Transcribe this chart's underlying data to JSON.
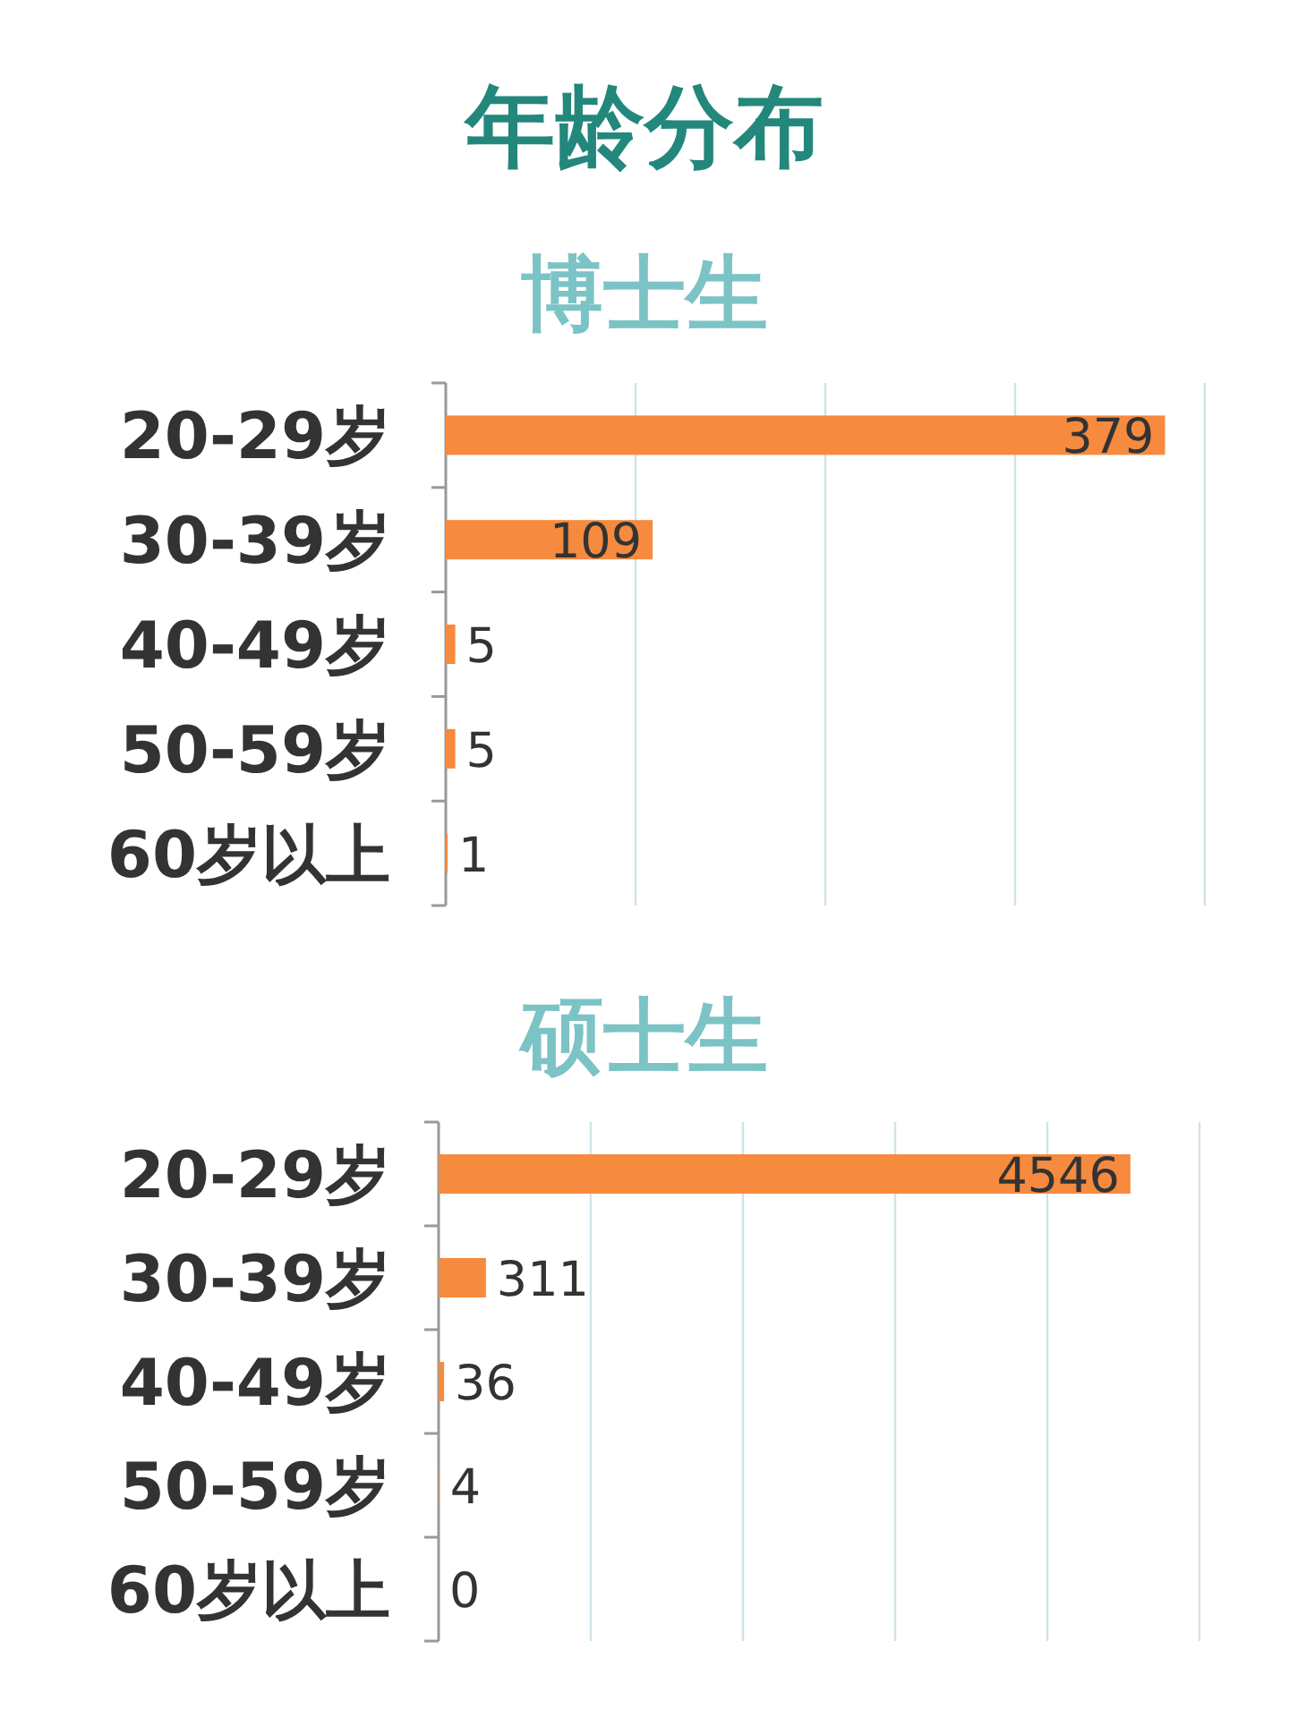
{
  "chart_data": [
    {
      "type": "bar",
      "orientation": "horizontal",
      "title": "年龄分布",
      "subtitle": "博士生",
      "categories": [
        "20-29岁",
        "30-39岁",
        "40-49岁",
        "50-59岁",
        "60岁以上"
      ],
      "values": [
        379,
        109,
        5,
        5,
        1
      ],
      "color": "#f68a3e",
      "data_labels": true,
      "xlim": [
        0,
        400
      ],
      "xticks": [
        {
          "value": 0,
          "label": null
        },
        {
          "value": 100,
          "label": null
        },
        {
          "value": 200,
          "label": null
        },
        {
          "value": 300,
          "label": null
        },
        {
          "value": 400,
          "label": null
        }
      ],
      "grid": "x",
      "tick_labels": "y"
    },
    {
      "type": "bar",
      "orientation": "horizontal",
      "title": "硕士生",
      "categories": [
        "20-29岁",
        "30-39岁",
        "40-49岁",
        "50-59岁",
        "60岁以上"
      ],
      "values": [
        4546,
        311,
        36,
        4,
        0
      ],
      "color": "#f68a3e",
      "data_labels": true,
      "xlim": [
        0,
        5000
      ],
      "xticks": [
        {
          "value": 0,
          "label": null
        },
        {
          "value": 1000,
          "label": null
        },
        {
          "value": 2000,
          "label": null
        },
        {
          "value": 3000,
          "label": null
        },
        {
          "value": 4000,
          "label": null
        },
        {
          "value": 5000,
          "label": null
        }
      ],
      "grid": "x",
      "tick_labels": "y"
    }
  ]
}
